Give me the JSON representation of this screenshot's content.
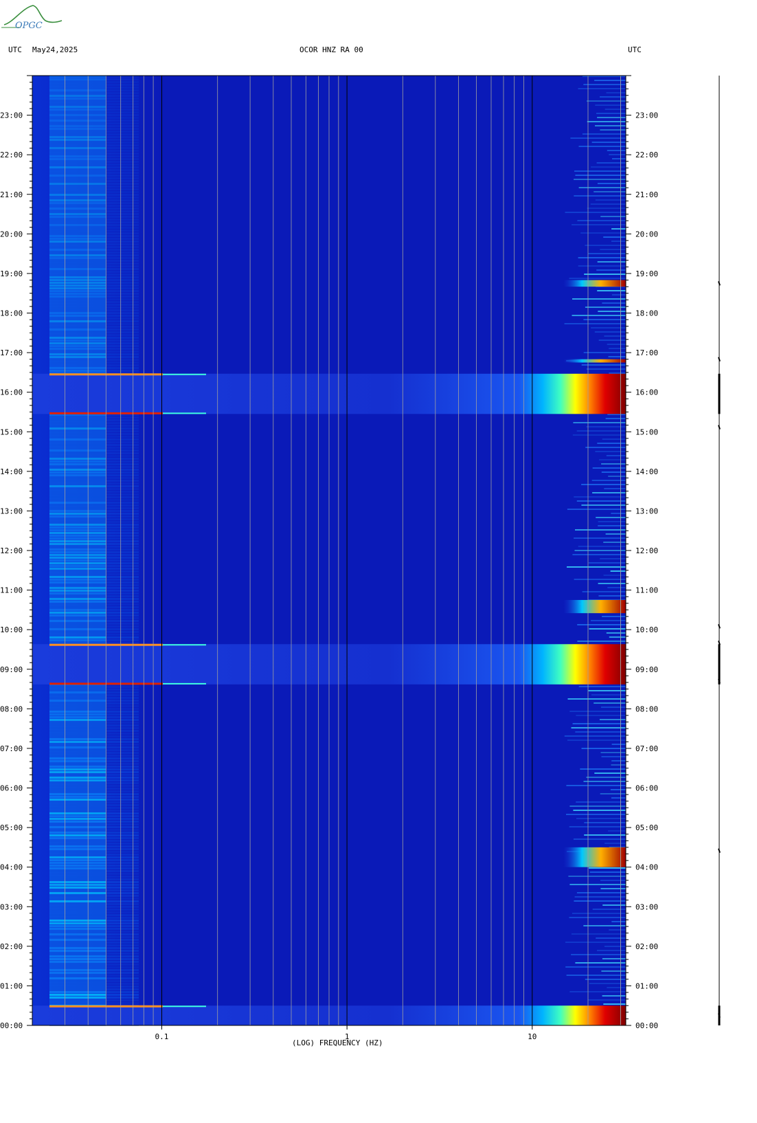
{
  "header": {
    "left_tz": "UTC",
    "date": "May24,2025",
    "station": "OCOR HNZ RA 00",
    "right_tz": "UTC"
  },
  "logo": {
    "text": "OPGC",
    "color": "#2e8b3a"
  },
  "chart_data": {
    "type": "heatmap",
    "title": "OCOR HNZ RA 00",
    "xlabel": "(LOG) FREQUENCY (HZ)",
    "x_scale": "log",
    "xlim_hz": [
      0.02,
      32
    ],
    "x_ticks": [
      {
        "value": 0.1,
        "label": "0.1"
      },
      {
        "value": 1,
        "label": "1"
      },
      {
        "value": 10,
        "label": "10"
      }
    ],
    "ylabel": "UTC",
    "y_time_range": [
      "00:00",
      "24:00"
    ],
    "y_ticks": [
      "00:00",
      "01:00",
      "02:00",
      "03:00",
      "04:00",
      "05:00",
      "06:00",
      "07:00",
      "08:00",
      "09:00",
      "10:00",
      "11:00",
      "12:00",
      "13:00",
      "14:00",
      "15:00",
      "16:00",
      "17:00",
      "18:00",
      "19:00",
      "20:00",
      "21:00",
      "22:00",
      "23:00"
    ],
    "colormap": [
      "#00008c",
      "#0000d8",
      "#0050ff",
      "#00c8ff",
      "#58ffb4",
      "#ffff00",
      "#ff7800",
      "#e00000",
      "#800000"
    ],
    "background_color": "#0a1ab8",
    "broadband_events": [
      {
        "start": "00:00",
        "end": "00:30"
      },
      {
        "start": "08:37",
        "end": "09:38"
      },
      {
        "start": "15:27",
        "end": "16:28"
      }
    ],
    "high_freq_bursts": [
      {
        "start": "04:00",
        "end": "04:30"
      },
      {
        "start": "10:25",
        "end": "10:45"
      },
      {
        "start": "16:45",
        "end": "16:50"
      },
      {
        "start": "18:40",
        "end": "18:50"
      }
    ],
    "seismogram_spikes": [
      "18:45",
      "16:50",
      "15:07",
      "10:05",
      "09:40",
      "08:42",
      "04:25",
      "00:15"
    ]
  }
}
